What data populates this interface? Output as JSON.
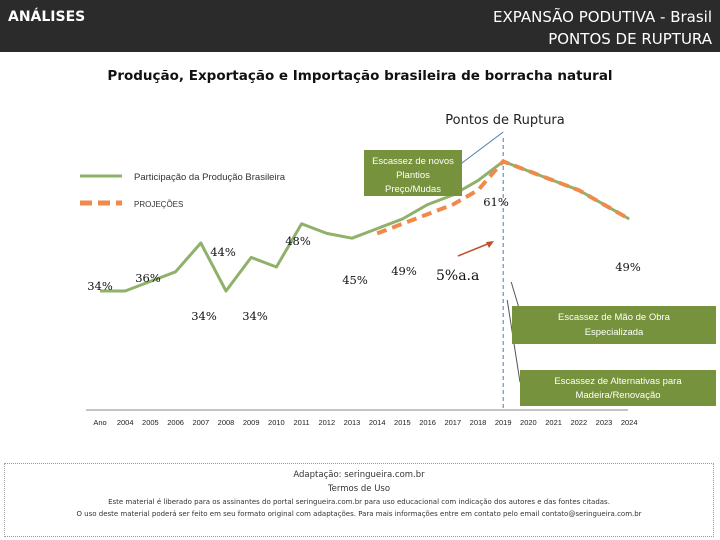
{
  "header": {
    "left": "ANÁLISES",
    "right_line1": "EXPANSÃO PODUTIVA - Brasil",
    "right_line2": "PONTOS DE RUPTURA"
  },
  "chart_title": "Produção, Exportação e Importação brasileira de borracha natural",
  "colors": {
    "series": "#8fb16a",
    "projection": "#f08a4b",
    "box": "#76923c",
    "line": "#4a7cb0",
    "arrow": "#c0502a"
  },
  "chart_data": {
    "type": "line",
    "title": "Produção, Exportação e Importação brasileira de borracha natural",
    "x_label_first": "Ano",
    "categories": [
      "2004",
      "2005",
      "2006",
      "2007",
      "2008",
      "2009",
      "2010",
      "2011",
      "2012",
      "2013",
      "2014",
      "2015",
      "2016",
      "2017",
      "2018",
      "2019",
      "2020",
      "2021",
      "2022",
      "2023",
      "2024"
    ],
    "series": [
      {
        "name": "Participação da Produção Brasileira",
        "style": "solid",
        "x": [
          "Ano",
          "2004",
          "2005",
          "2006",
          "2007",
          "2008",
          "2009",
          "2010",
          "2011",
          "2012",
          "2013",
          "2014",
          "2015",
          "2016",
          "2017",
          "2018",
          "2019",
          "2020",
          "2021",
          "2022",
          "2023",
          "2024"
        ],
        "values": [
          34,
          34,
          36,
          38,
          44,
          34,
          41,
          39,
          48,
          46,
          45,
          47,
          49,
          52,
          54,
          57,
          61,
          59,
          57,
          55,
          52,
          49
        ]
      },
      {
        "name": "PROJEÇÕES",
        "style": "dashed",
        "x": [
          "2014",
          "2015",
          "2016",
          "2017",
          "2018",
          "2019",
          "2020",
          "2021",
          "2022",
          "2023",
          "2024"
        ],
        "values": [
          46,
          48,
          50,
          52,
          55,
          61,
          59,
          57,
          55,
          52,
          49
        ]
      }
    ],
    "ylim": [
      28,
      66
    ],
    "data_labels": [
      {
        "text": "34%",
        "x": "Ano",
        "y": 34
      },
      {
        "text": "36%",
        "x": "2005",
        "y": 36
      },
      {
        "text": "44%",
        "x": "2007",
        "y": 44
      },
      {
        "text": "34%",
        "x": "2007",
        "y": 34
      },
      {
        "text": "34%",
        "x": "2009",
        "y": 34
      },
      {
        "text": "48%",
        "x": "2011",
        "y": 48
      },
      {
        "text": "45%",
        "x": "2013",
        "y": 45
      },
      {
        "text": "49%",
        "x": "2015",
        "y": 49
      },
      {
        "text": "61%",
        "x": "2019",
        "y": 61
      },
      {
        "text": "49%",
        "x": "2024",
        "y": 49
      }
    ],
    "annotations": {
      "pontos_ruptura": "Pontos de Ruptura",
      "growth_rate": "5%a.a",
      "box_escassez_plantios": [
        "Escassez de novos",
        "Plantios",
        "Preço/Mudas"
      ],
      "box_mao_obra": [
        "Escassez de Mão de Obra",
        "Especializada"
      ],
      "box_alternativas": [
        "Escassez de Alternativas para",
        "Madeira/Renovação"
      ]
    },
    "rupture_year": "2019"
  },
  "footer": {
    "line1": "Adaptação: seringueira.com.br",
    "line2": "Termos de Uso",
    "line3": "Este material é liberado para os assinantes do portal seringueira.com.br para uso educacional com indicação dos autores e das fontes citadas.",
    "line4": "O uso deste material poderá ser feito em seu formato original com adaptações. Para mais informações entre em contato pelo email contato@seringueira.com.br"
  }
}
